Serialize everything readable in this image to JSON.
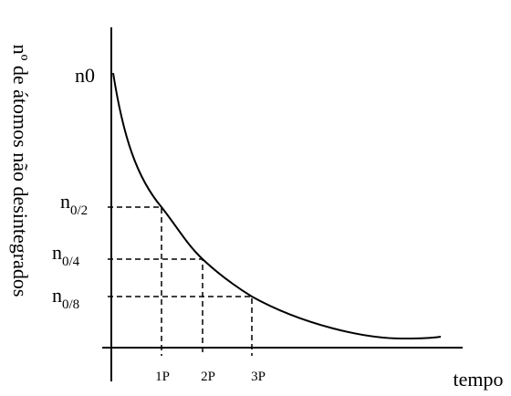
{
  "y_axis_label": "nº de átomos não desintegrados",
  "x_axis_label": "tempo",
  "top_label": "n0",
  "levels": [
    {
      "base": "n",
      "sub": "0/2"
    },
    {
      "base": "n",
      "sub": "0/4"
    },
    {
      "base": "n",
      "sub": "0/8"
    }
  ],
  "periods": [
    "1P",
    "2P",
    "3P"
  ]
}
